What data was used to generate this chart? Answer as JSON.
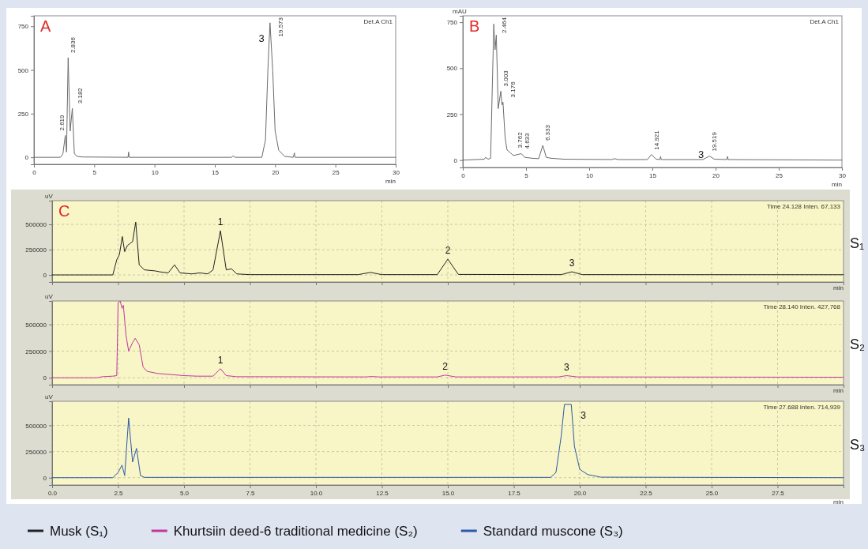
{
  "chart_data": [
    {
      "type": "line",
      "title": "A",
      "xlabel": "min",
      "xlim": [
        0,
        30
      ],
      "ylim": [
        -40,
        810
      ],
      "xticks": [
        0,
        5,
        10,
        15,
        20,
        25,
        30
      ],
      "yticks": [
        0,
        250,
        500,
        750
      ],
      "grid": false,
      "series": [
        {
          "color": "#6b6b6b",
          "x": [
            0,
            2.2,
            2.4,
            2.6,
            2.7,
            2.836,
            3.0,
            3.182,
            3.35,
            3.6,
            4,
            7.8,
            7.85,
            7.9,
            16.4,
            16.5,
            16.7,
            18.9,
            19.2,
            19.4,
            19.573,
            19.8,
            20.0,
            20.3,
            20.8,
            21.5,
            21.6,
            21.65,
            30
          ],
          "values": [
            0,
            0,
            20,
            125,
            30,
            570,
            150,
            280,
            20,
            5,
            2,
            0,
            30,
            0,
            0,
            8,
            0,
            0,
            100,
            500,
            770,
            500,
            150,
            40,
            5,
            0,
            25,
            0,
            0
          ]
        }
      ],
      "annotations": [
        "Det.A Ch1",
        {
          "text": "2.619",
          "x": 2.619,
          "y": 125
        },
        {
          "text": "2.836",
          "x": 2.836,
          "y": 570
        },
        {
          "text": "3.182",
          "x": 3.182,
          "y": 280
        },
        {
          "text": "19.573",
          "x": 19.573,
          "y": 770
        },
        {
          "text": "3",
          "x": 19.573,
          "y": 770
        }
      ]
    },
    {
      "type": "line",
      "title": "B",
      "xlabel": "min",
      "ylabel": "mAU",
      "xlim": [
        0,
        30
      ],
      "ylim": [
        -40,
        785
      ],
      "xticks": [
        0,
        5,
        10,
        15,
        20,
        25,
        30
      ],
      "yticks": [
        0,
        250,
        500,
        750
      ],
      "grid": false,
      "series": [
        {
          "color": "#6b6b6b",
          "x": [
            0,
            1.7,
            1.8,
            2.0,
            2.2,
            2.45,
            2.55,
            2.65,
            2.8,
            3.003,
            3.1,
            3.176,
            3.35,
            3.5,
            3.762,
            4.0,
            4.3,
            4.633,
            4.9,
            5.5,
            6.0,
            6.333,
            6.6,
            7,
            8,
            11.8,
            12,
            12.3,
            14.6,
            14.921,
            15.3,
            15.6,
            15.65,
            15.7,
            19.0,
            19.519,
            19.9,
            20.9,
            20.95,
            21,
            30
          ],
          "values": [
            0,
            5,
            15,
            5,
            10,
            740,
            600,
            680,
            280,
            375,
            300,
            315,
            120,
            55,
            40,
            25,
            30,
            35,
            15,
            10,
            8,
            80,
            15,
            10,
            5,
            3,
            8,
            3,
            3,
            30,
            5,
            3,
            20,
            3,
            3,
            22,
            5,
            3,
            20,
            3,
            0
          ]
        }
      ],
      "annotations": [
        "Det.A Ch1",
        {
          "text": "2.464",
          "x": 2.45,
          "y": 740
        },
        {
          "text": "3.003",
          "x": 3.003,
          "y": 375
        },
        {
          "text": "3.176",
          "x": 3.176,
          "y": 315
        },
        {
          "text": "3.762",
          "x": 3.762,
          "y": 40
        },
        {
          "text": "4.633",
          "x": 4.633,
          "y": 35
        },
        {
          "text": "6.333",
          "x": 6.333,
          "y": 80
        },
        {
          "text": "14.921",
          "x": 14.921,
          "y": 30
        },
        {
          "text": "19.519",
          "x": 19.519,
          "y": 22
        },
        {
          "text": "3",
          "x": 19.519,
          "y": 22
        }
      ]
    },
    {
      "type": "line",
      "title": "C",
      "xlabel": "min",
      "ylabel": "uV",
      "xlim": [
        0,
        30
      ],
      "ylim": [
        -70000,
        735000
      ],
      "tick_labels": "y",
      "grid": true,
      "legend": "bottom",
      "xticks": [
        {
          "value": 0,
          "label": null
        },
        {
          "value": 2.5,
          "label": null
        },
        {
          "value": 5,
          "label": null
        },
        {
          "value": 7.5,
          "label": null
        },
        {
          "value": 10,
          "label": null
        },
        {
          "value": 12.5,
          "label": null
        },
        {
          "value": 15,
          "label": null
        },
        {
          "value": 17.5,
          "label": null
        },
        {
          "value": 20,
          "label": null
        },
        {
          "value": 22.5,
          "label": null
        },
        {
          "value": 25,
          "label": null
        },
        {
          "value": 27.5,
          "label": null
        }
      ],
      "yticks": [
        0,
        250000,
        500000
      ],
      "series": [
        {
          "name": "Musk (S₁)",
          "color": "#222222",
          "x": [
            0,
            2.3,
            2.45,
            2.55,
            2.66,
            2.75,
            2.85,
            2.95,
            3.05,
            3.17,
            3.3,
            3.5,
            3.9,
            4.1,
            4.4,
            4.64,
            4.85,
            5.3,
            5.6,
            5.9,
            6.1,
            6.38,
            6.6,
            6.8,
            7.0,
            7.5,
            11.6,
            12.07,
            12.5,
            14.6,
            15.0,
            15.4,
            19.3,
            19.7,
            20.1,
            30
          ],
          "values": [
            0,
            0,
            150000,
            200000,
            380000,
            230000,
            290000,
            310000,
            330000,
            523000,
            100000,
            50000,
            40000,
            30000,
            20000,
            100000,
            20000,
            10000,
            20000,
            10000,
            50000,
            437000,
            50000,
            60000,
            10000,
            3000,
            3000,
            25000,
            3000,
            3000,
            156000,
            5000,
            3000,
            31000,
            3000,
            2000
          ]
        }
      ],
      "annotations": [
        "Time 24.128 Inten. 67,133",
        "S₁",
        {
          "text": "1",
          "x": 6.38,
          "y": 437000
        },
        {
          "text": "2",
          "x": 15.0,
          "y": 156000
        },
        {
          "text": "3",
          "x": 19.7,
          "y": 31000
        }
      ]
    },
    {
      "type": "line",
      "xlabel": "min",
      "ylabel": "uV",
      "xlim": [
        0,
        30
      ],
      "ylim": [
        -65000,
        720000
      ],
      "tick_labels": "y",
      "grid": true,
      "legend": "bottom",
      "xticks": [
        {
          "value": 0,
          "label": null
        },
        {
          "value": 2.5,
          "label": null
        },
        {
          "value": 5,
          "label": null
        },
        {
          "value": 7.5,
          "label": null
        },
        {
          "value": 10,
          "label": null
        },
        {
          "value": 12.5,
          "label": null
        },
        {
          "value": 15,
          "label": null
        },
        {
          "value": 17.5,
          "label": null
        },
        {
          "value": 20,
          "label": null
        },
        {
          "value": 22.5,
          "label": null
        },
        {
          "value": 25,
          "label": null
        },
        {
          "value": 27.5,
          "label": null
        }
      ],
      "yticks": [
        0,
        250000,
        500000
      ],
      "series": [
        {
          "name": "Khurtsiin deed-6 traditional medicine (S₂)",
          "color": "#c0399a",
          "x": [
            0,
            1.7,
            1.9,
            2.3,
            2.45,
            2.5,
            2.58,
            2.65,
            2.7,
            2.8,
            2.9,
            3.05,
            3.15,
            3.3,
            3.45,
            3.6,
            4.0,
            5.0,
            5.5,
            6.1,
            6.38,
            6.6,
            7,
            11.9,
            12.1,
            12.4,
            14.6,
            14.9,
            15.3,
            19.2,
            19.5,
            19.9,
            30
          ],
          "values": [
            0,
            0,
            10000,
            15000,
            20000,
            700000,
            720000,
            650000,
            680000,
            400000,
            250000,
            330000,
            370000,
            310000,
            100000,
            60000,
            40000,
            20000,
            15000,
            15000,
            85000,
            20000,
            10000,
            8000,
            12000,
            8000,
            8000,
            25000,
            8000,
            8000,
            20000,
            8000,
            5000
          ]
        }
      ],
      "annotations": [
        "Time 28.140 Inten. 427,768",
        "S₂",
        {
          "text": "1",
          "x": 6.38,
          "y": 85000
        },
        {
          "text": "2",
          "x": 14.9,
          "y": 25000
        },
        {
          "text": "3",
          "x": 19.5,
          "y": 20000
        }
      ]
    },
    {
      "type": "line",
      "xlabel": "min",
      "ylabel": "uV",
      "xlim": [
        0,
        30
      ],
      "ylim": [
        -70000,
        730000
      ],
      "grid": true,
      "legend": "bottom",
      "xticks": [
        {
          "value": 0,
          "label": "0.0"
        },
        {
          "value": 2.5,
          "label": "2.5"
        },
        {
          "value": 5,
          "label": "5.0"
        },
        {
          "value": 7.5,
          "label": "7.5"
        },
        {
          "value": 10,
          "label": "10.0"
        },
        {
          "value": 12.5,
          "label": "12.5"
        },
        {
          "value": 15,
          "label": "15.0"
        },
        {
          "value": 17.5,
          "label": "17.5"
        },
        {
          "value": 20,
          "label": "20.0"
        },
        {
          "value": 22.5,
          "label": "22.5"
        },
        {
          "value": 25,
          "label": "25.0"
        },
        {
          "value": 27.5,
          "label": "27.5"
        }
      ],
      "yticks": [
        0,
        250000,
        500000
      ],
      "series": [
        {
          "name": "Standard muscone (S₃)",
          "color": "#2b5aa8",
          "x": [
            0,
            2.3,
            2.5,
            2.65,
            2.75,
            2.9,
            3.05,
            3.2,
            3.35,
            3.5,
            18.9,
            19.1,
            19.3,
            19.42,
            19.68,
            19.8,
            20.0,
            20.3,
            20.8,
            30
          ],
          "values": [
            0,
            0,
            50000,
            120000,
            20000,
            570000,
            150000,
            280000,
            20000,
            3000,
            3000,
            50000,
            400000,
            700000,
            700000,
            300000,
            80000,
            30000,
            5000,
            0
          ]
        }
      ],
      "annotations": [
        "Time 27.688 Inten. 714,939",
        "S₃",
        {
          "text": "3",
          "x": 19.68,
          "y": 700000
        }
      ]
    }
  ]
}
